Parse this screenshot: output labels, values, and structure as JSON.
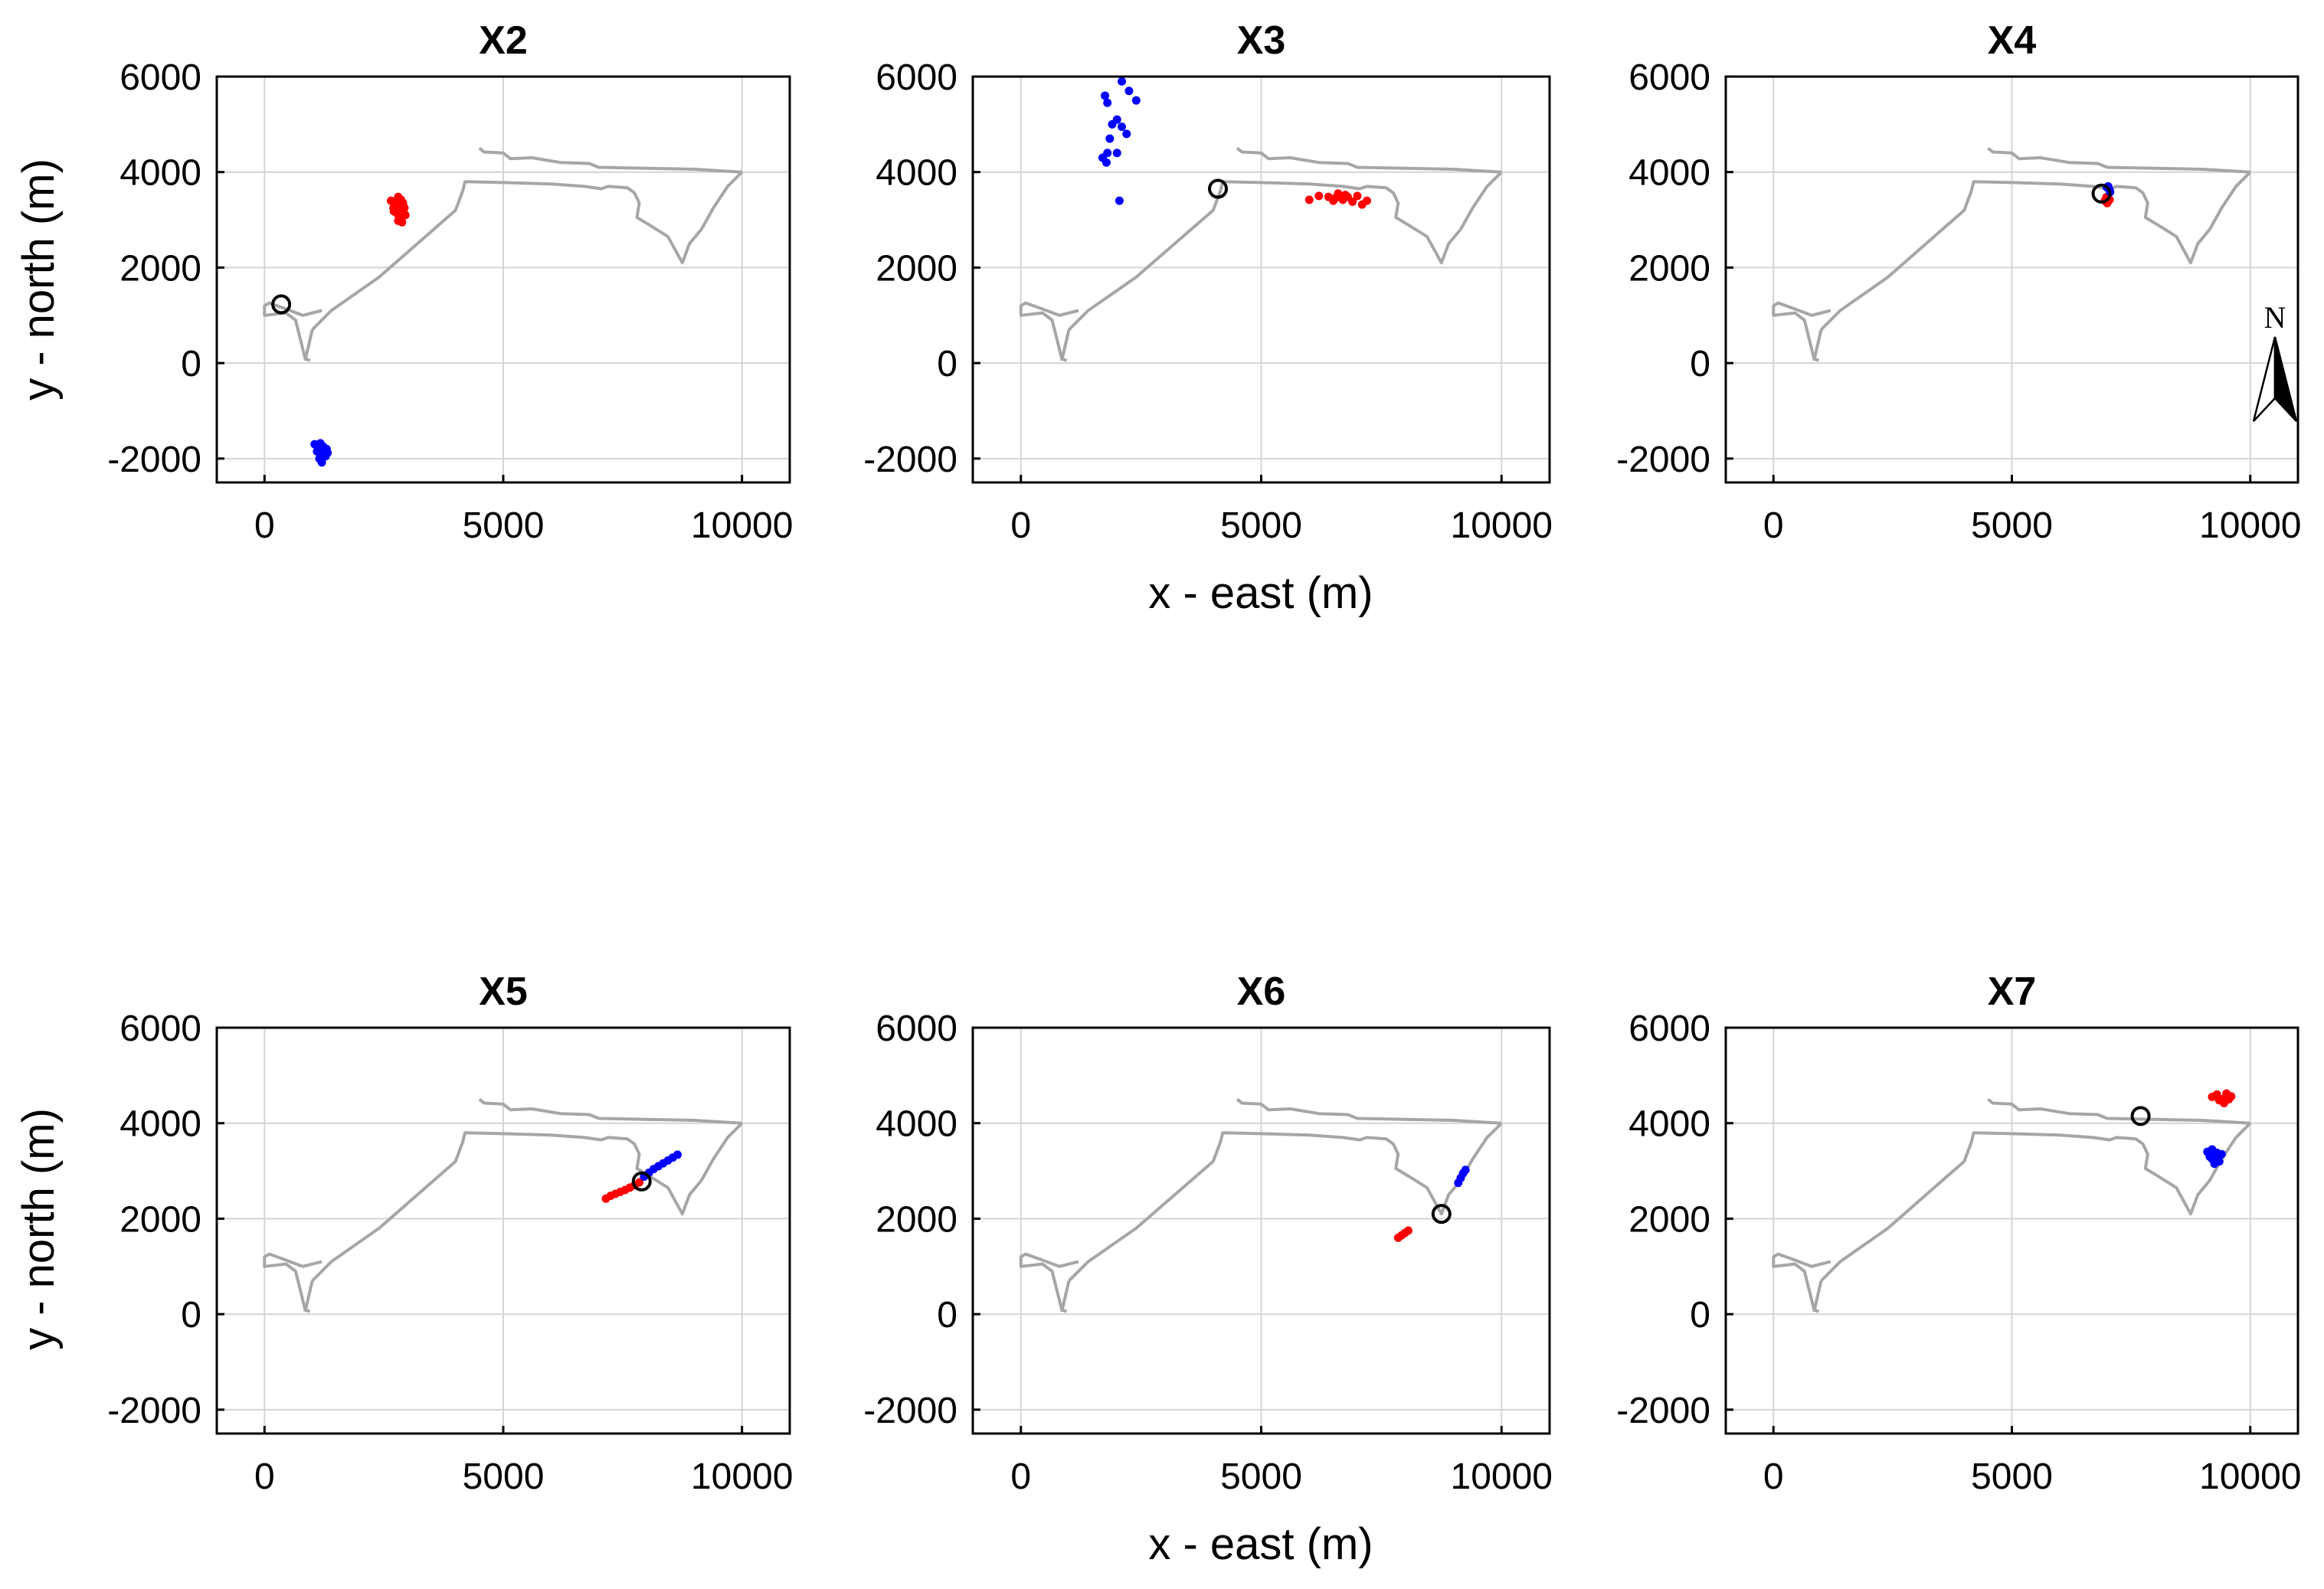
{
  "figure": {
    "xlabel": "x - east (m)",
    "ylabel": "y - north (m)",
    "north_label": "N"
  },
  "colors": {
    "coastline": "#a6a6a6",
    "grid": "#d4d4d4",
    "series_a": "#ff0000",
    "series_b": "#0000ff",
    "marker": "#000000"
  },
  "chart_data": [
    {
      "type": "scatter",
      "title": "X2",
      "xlim": [
        -1000,
        11000
      ],
      "ylim": [
        -2500,
        6000
      ],
      "xticks": [
        0,
        5000,
        10000
      ],
      "yticks": [
        -2000,
        0,
        2000,
        4000,
        6000
      ],
      "grid": true,
      "marker": [
        350,
        1230
      ],
      "series": [
        {
          "name": "red",
          "points": [
            [
              2650,
              3400
            ],
            [
              2730,
              3300
            ],
            [
              2800,
              3480
            ],
            [
              2850,
              3220
            ],
            [
              2760,
              3150
            ],
            [
              2900,
              3350
            ],
            [
              2820,
              3050
            ],
            [
              2700,
              3250
            ],
            [
              2880,
              2950
            ],
            [
              2950,
              3100
            ],
            [
              2780,
              3380
            ],
            [
              2860,
              3420
            ],
            [
              2710,
              3180
            ],
            [
              2930,
              3250
            ],
            [
              2800,
              2980
            ]
          ]
        },
        {
          "name": "blue",
          "points": [
            [
              1050,
              -1700
            ],
            [
              1120,
              -1780
            ],
            [
              1180,
              -1900
            ],
            [
              1250,
              -1850
            ],
            [
              1150,
              -2000
            ],
            [
              1200,
              -2080
            ],
            [
              1300,
              -1800
            ],
            [
              1100,
              -1850
            ],
            [
              1230,
              -1750
            ],
            [
              1280,
              -1950
            ],
            [
              1170,
              -1680
            ],
            [
              1320,
              -1880
            ]
          ]
        }
      ]
    },
    {
      "type": "scatter",
      "title": "X3",
      "xlim": [
        -1000,
        11000
      ],
      "ylim": [
        -2500,
        6000
      ],
      "xticks": [
        0,
        5000,
        10000
      ],
      "yticks": [
        -2000,
        0,
        2000,
        4000,
        6000
      ],
      "grid": true,
      "marker": [
        4100,
        3650
      ],
      "series": [
        {
          "name": "red",
          "points": [
            [
              6000,
              3420
            ],
            [
              6200,
              3500
            ],
            [
              6400,
              3480
            ],
            [
              6500,
              3400
            ],
            [
              6600,
              3550
            ],
            [
              6700,
              3420
            ],
            [
              6800,
              3480
            ],
            [
              6900,
              3380
            ],
            [
              7000,
              3500
            ],
            [
              7100,
              3320
            ],
            [
              7200,
              3400
            ],
            [
              6550,
              3460
            ],
            [
              6750,
              3520
            ]
          ]
        },
        {
          "name": "blue",
          "points": [
            [
              2100,
              5900
            ],
            [
              2250,
              5700
            ],
            [
              2400,
              5500
            ],
            [
              1750,
              5600
            ],
            [
              1800,
              5450
            ],
            [
              2000,
              5100
            ],
            [
              1900,
              5000
            ],
            [
              2100,
              4950
            ],
            [
              2200,
              4800
            ],
            [
              1850,
              4700
            ],
            [
              1700,
              4300
            ],
            [
              1800,
              4400
            ],
            [
              2000,
              4400
            ],
            [
              2050,
              3400
            ],
            [
              1780,
              4200
            ]
          ]
        }
      ]
    },
    {
      "type": "scatter",
      "title": "X4",
      "xlim": [
        -1000,
        11000
      ],
      "ylim": [
        -2500,
        6000
      ],
      "xticks": [
        0,
        5000,
        10000
      ],
      "yticks": [
        -2000,
        0,
        2000,
        4000,
        6000
      ],
      "grid": true,
      "marker": [
        6880,
        3550
      ],
      "north_arrow": true,
      "series": [
        {
          "name": "red",
          "points": [
            [
              6950,
              3400
            ],
            [
              7000,
              3350
            ],
            [
              7050,
              3420
            ],
            [
              6980,
              3470
            ]
          ]
        },
        {
          "name": "blue",
          "points": [
            [
              7020,
              3700
            ],
            [
              7050,
              3620
            ],
            [
              6990,
              3680
            ],
            [
              7060,
              3580
            ]
          ]
        }
      ]
    },
    {
      "type": "scatter",
      "title": "X5",
      "xlim": [
        -1000,
        11000
      ],
      "ylim": [
        -2500,
        6000
      ],
      "xticks": [
        0,
        5000,
        10000
      ],
      "yticks": [
        -2000,
        0,
        2000,
        4000,
        6000
      ],
      "grid": true,
      "marker": [
        7900,
        2780
      ],
      "series": [
        {
          "name": "red",
          "points": [
            [
              7150,
              2420
            ],
            [
              7250,
              2480
            ],
            [
              7350,
              2520
            ],
            [
              7450,
              2560
            ],
            [
              7550,
              2600
            ],
            [
              7650,
              2650
            ],
            [
              7750,
              2700
            ],
            [
              7850,
              2760
            ]
          ]
        },
        {
          "name": "blue",
          "points": [
            [
              7950,
              2880
            ],
            [
              8050,
              2960
            ],
            [
              8150,
              3040
            ],
            [
              8250,
              3100
            ],
            [
              8350,
              3160
            ],
            [
              8450,
              3220
            ],
            [
              8550,
              3280
            ],
            [
              8650,
              3340
            ]
          ]
        }
      ]
    },
    {
      "type": "scatter",
      "title": "X6",
      "xlim": [
        -1000,
        11000
      ],
      "ylim": [
        -2500,
        6000
      ],
      "xticks": [
        0,
        5000,
        10000
      ],
      "yticks": [
        -2000,
        0,
        2000,
        4000,
        6000
      ],
      "grid": true,
      "marker": [
        8750,
        2100
      ],
      "series": [
        {
          "name": "red",
          "points": [
            [
              7850,
              1600
            ],
            [
              7920,
              1650
            ],
            [
              7990,
              1700
            ],
            [
              8060,
              1750
            ]
          ]
        },
        {
          "name": "blue",
          "points": [
            [
              9100,
              2750
            ],
            [
              9150,
              2850
            ],
            [
              9200,
              2950
            ],
            [
              9250,
              3020
            ]
          ]
        }
      ]
    },
    {
      "type": "scatter",
      "title": "X7",
      "xlim": [
        -1000,
        11000
      ],
      "ylim": [
        -2500,
        6000
      ],
      "xticks": [
        0,
        5000,
        10000
      ],
      "yticks": [
        -2000,
        0,
        2000,
        4000,
        6000
      ],
      "grid": true,
      "marker": [
        7700,
        4150
      ],
      "series": [
        {
          "name": "red",
          "points": [
            [
              9200,
              4550
            ],
            [
              9300,
              4600
            ],
            [
              9400,
              4500
            ],
            [
              9500,
              4620
            ],
            [
              9550,
              4500
            ],
            [
              9450,
              4420
            ],
            [
              9350,
              4480
            ],
            [
              9600,
              4560
            ]
          ]
        },
        {
          "name": "blue",
          "points": [
            [
              9100,
              3400
            ],
            [
              9200,
              3450
            ],
            [
              9300,
              3300
            ],
            [
              9350,
              3200
            ],
            [
              9250,
              3150
            ],
            [
              9150,
              3300
            ],
            [
              9400,
              3350
            ],
            [
              9200,
              3250
            ],
            [
              9300,
              3380
            ]
          ]
        }
      ]
    }
  ],
  "coastline": [
    [
      [
        1000,
        700
      ],
      [
        1400,
        1100
      ],
      [
        2400,
        1800
      ],
      [
        3200,
        2500
      ],
      [
        4000,
        3200
      ],
      [
        4150,
        3600
      ],
      [
        4200,
        3800
      ],
      [
        5000,
        3780
      ],
      [
        6000,
        3750
      ],
      [
        6700,
        3700
      ],
      [
        7050,
        3650
      ],
      [
        7200,
        3700
      ],
      [
        7600,
        3670
      ],
      [
        7700,
        3600
      ],
      [
        7750,
        3560
      ],
      [
        7850,
        3350
      ],
      [
        7800,
        3050
      ],
      [
        8050,
        2900
      ],
      [
        8450,
        2650
      ],
      [
        8750,
        2100
      ],
      [
        8900,
        2500
      ],
      [
        9150,
        2800
      ],
      [
        9400,
        3250
      ],
      [
        9700,
        3700
      ],
      [
        10000,
        4000
      ]
    ],
    [
      [
        4500,
        4500
      ],
      [
        4600,
        4420
      ],
      [
        5000,
        4400
      ],
      [
        5150,
        4280
      ],
      [
        5600,
        4300
      ],
      [
        6200,
        4200
      ],
      [
        6800,
        4180
      ],
      [
        7000,
        4100
      ],
      [
        8000,
        4080
      ],
      [
        9000,
        4060
      ],
      [
        10000,
        4000
      ]
    ],
    [
      [
        950,
        50
      ],
      [
        850,
        100
      ],
      [
        650,
        900
      ],
      [
        450,
        1050
      ],
      [
        0,
        1000
      ],
      [
        0,
        1200
      ],
      [
        100,
        1260
      ],
      [
        400,
        1150
      ],
      [
        800,
        1000
      ],
      [
        1200,
        1100
      ]
    ],
    [
      [
        1000,
        700
      ],
      [
        850,
        50
      ]
    ]
  ]
}
